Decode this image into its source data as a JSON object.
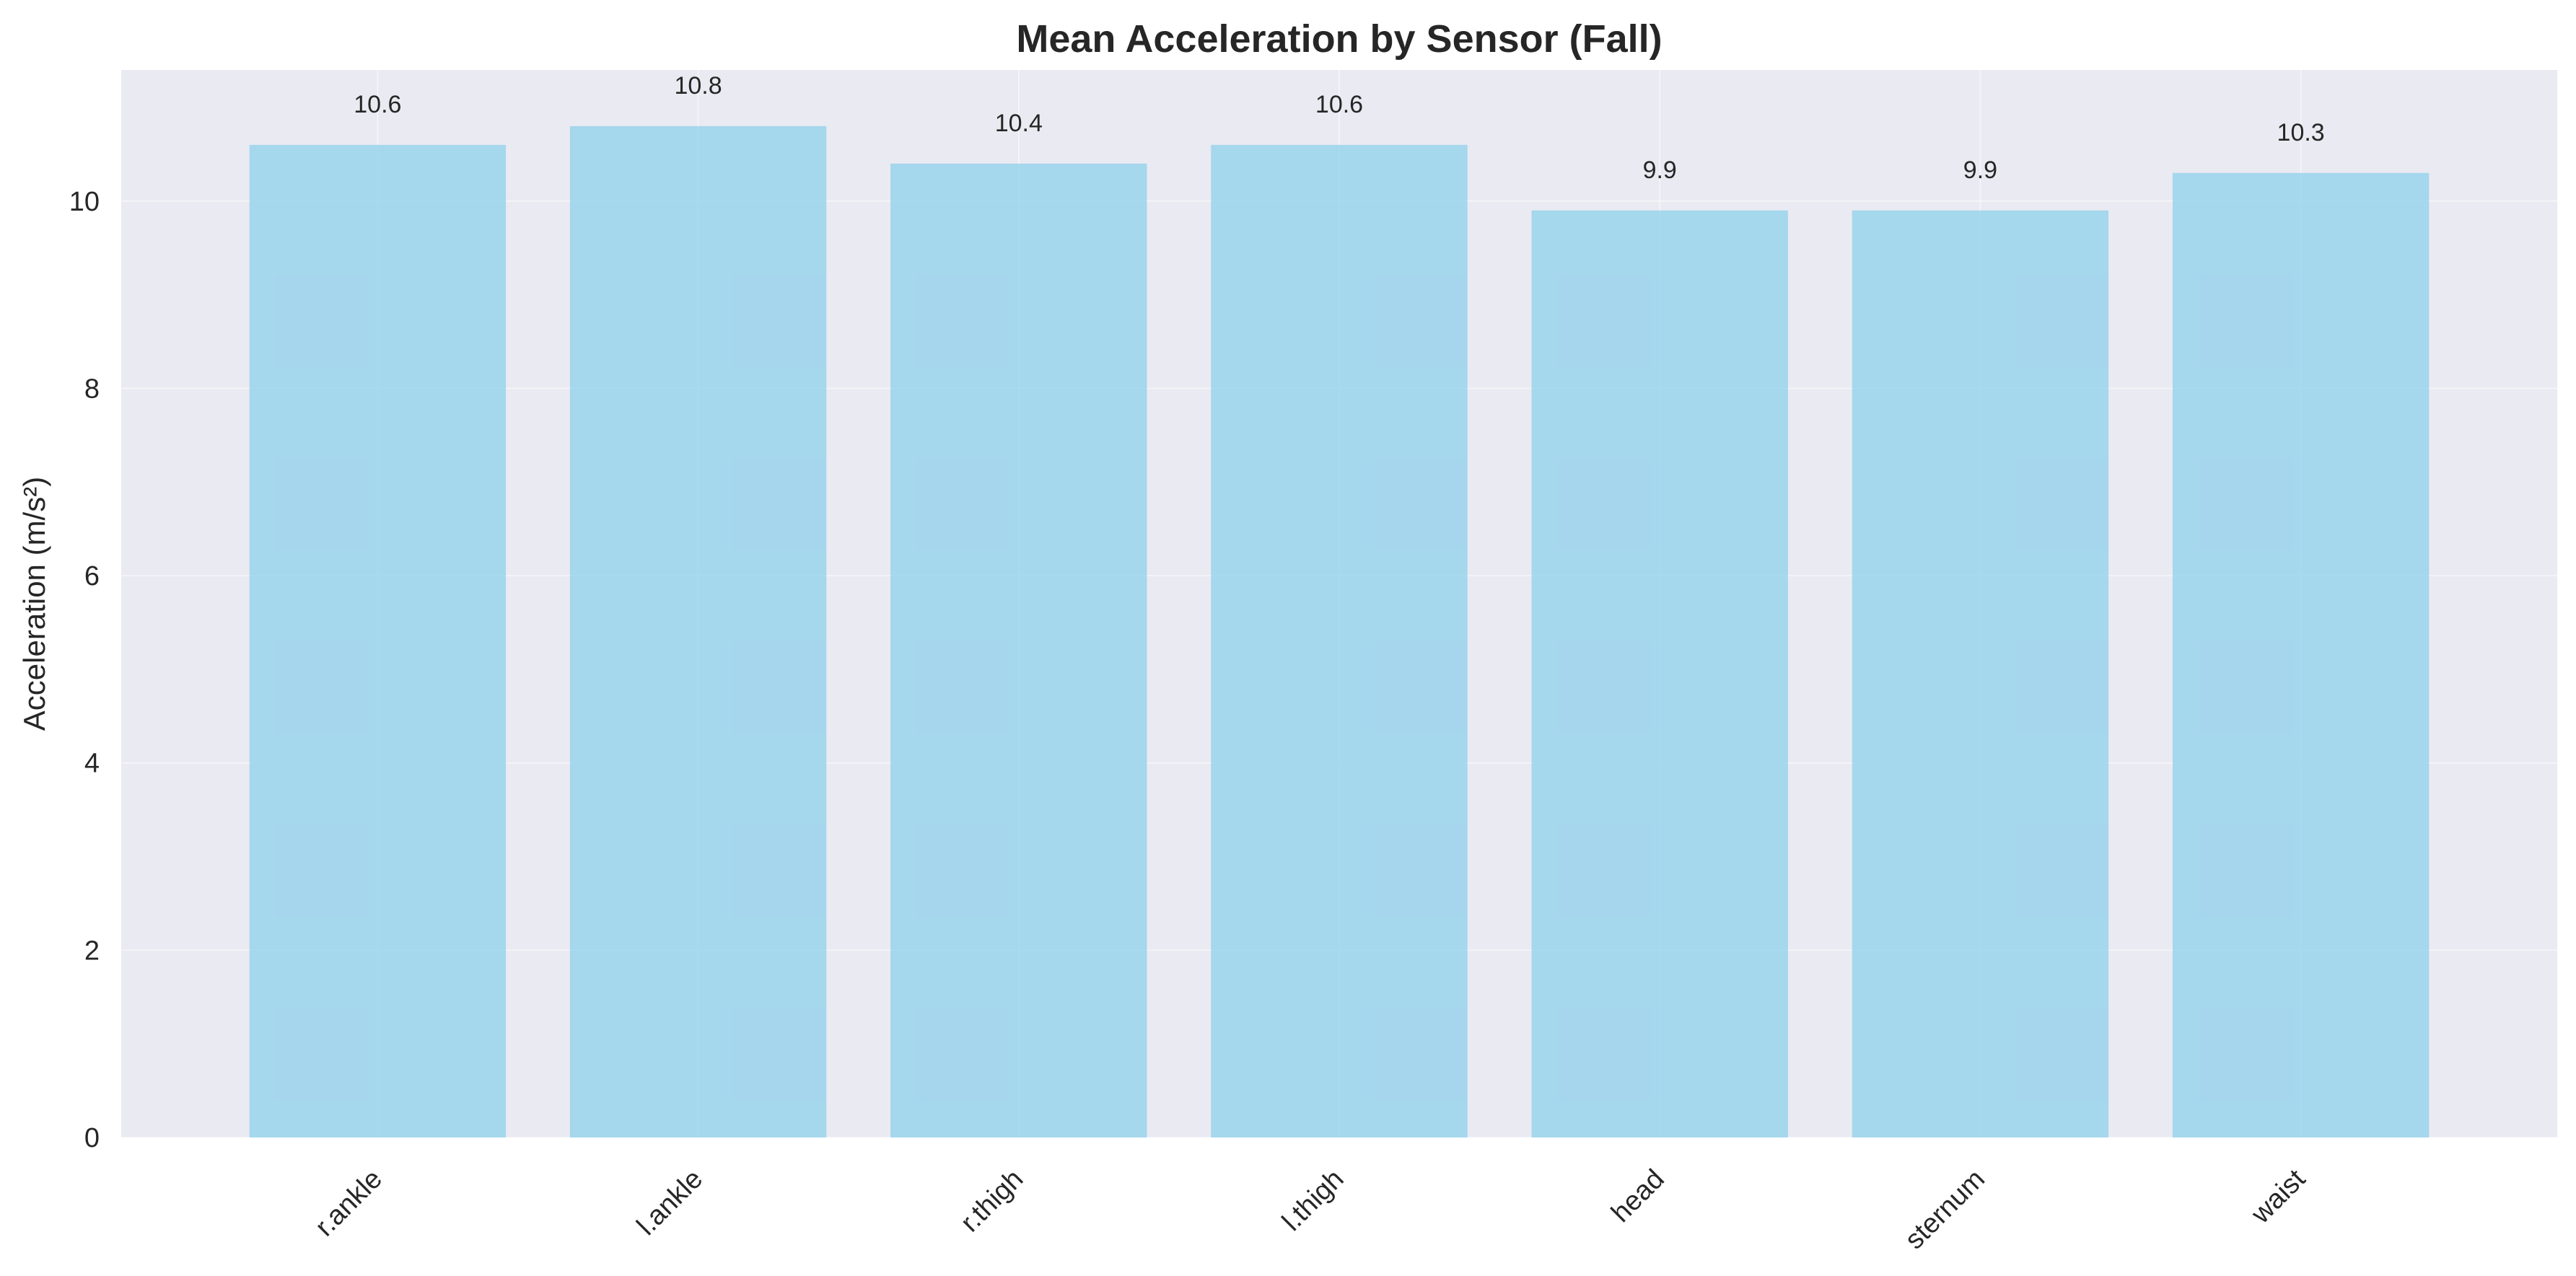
{
  "chart_data": {
    "type": "bar",
    "title": "Mean Acceleration by Sensor (Fall)",
    "xlabel": "",
    "ylabel": "Acceleration (m/s²)",
    "categories": [
      "r.ankle",
      "l.ankle",
      "r.thigh",
      "l.thigh",
      "head",
      "sternum",
      "waist"
    ],
    "values": [
      10.6,
      10.8,
      10.4,
      10.6,
      9.9,
      9.9,
      10.3
    ],
    "data_labels": [
      "10.6",
      "10.8",
      "10.4",
      "10.6",
      "9.9",
      "9.9",
      "10.3"
    ],
    "y_ticks": [
      0,
      2,
      4,
      6,
      8,
      10
    ],
    "ylim": [
      0,
      11.4
    ],
    "grid": true,
    "bar_color": "#87ceeb",
    "plot_background": "#eaeaf2"
  }
}
